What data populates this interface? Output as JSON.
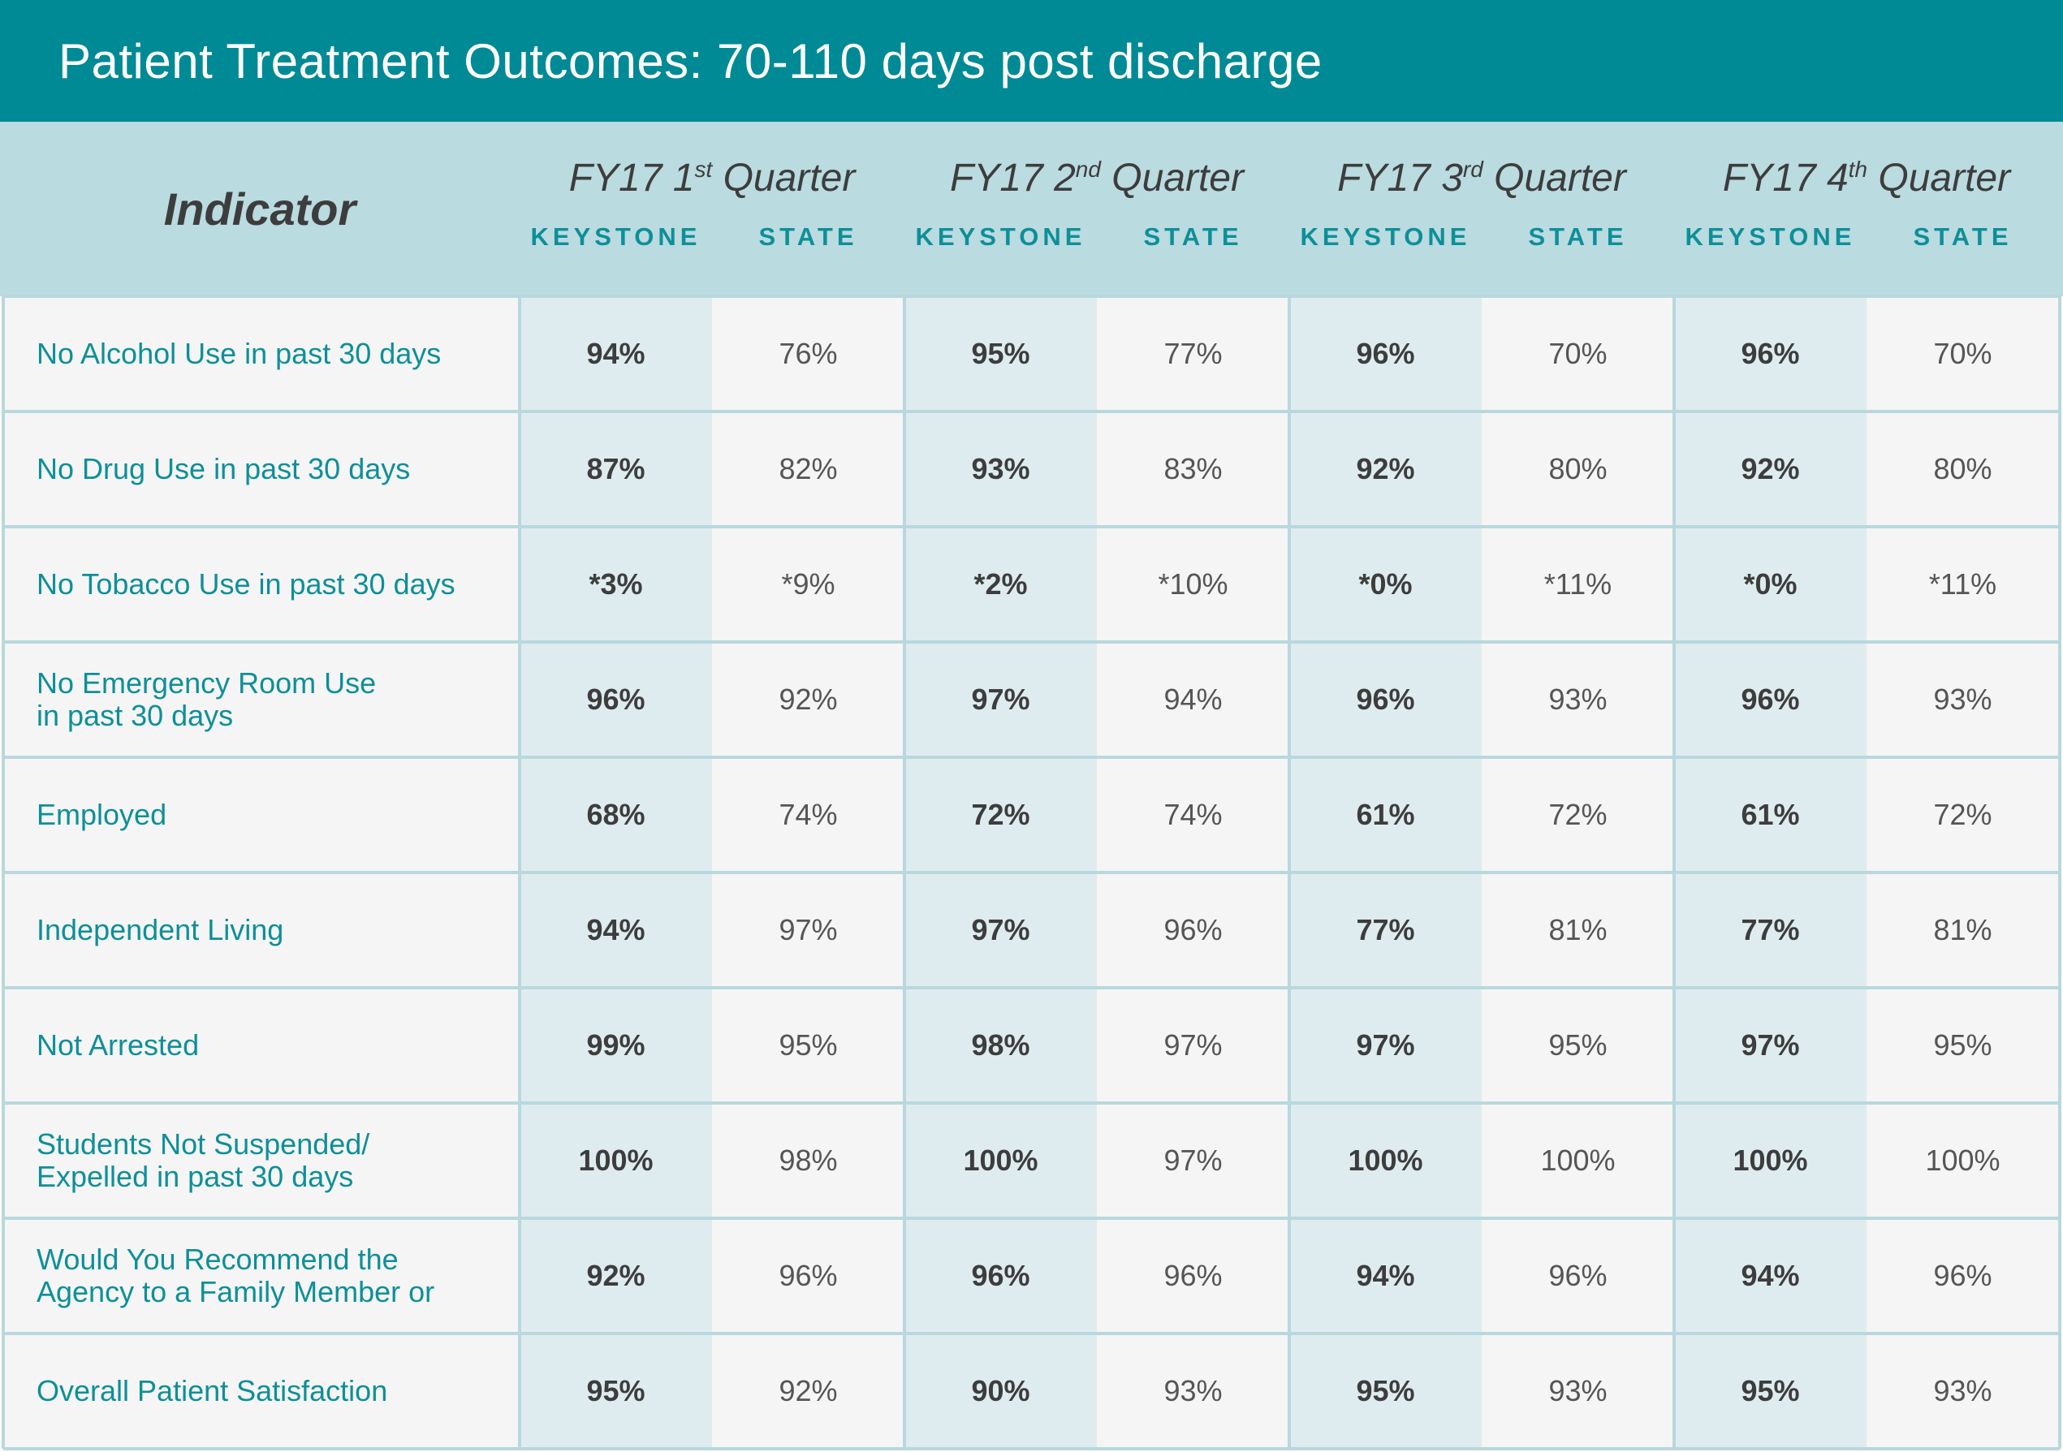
{
  "title": "Patient Treatment Outcomes: 70-110 days post discharge",
  "chart_data": {
    "type": "table",
    "indicator_header": "Indicator",
    "quarters": [
      {
        "prefix": "FY17 1",
        "ordinal": "st",
        "suffix": " Quarter"
      },
      {
        "prefix": "FY17 2",
        "ordinal": "nd",
        "suffix": " Quarter"
      },
      {
        "prefix": "FY17 3",
        "ordinal": "rd",
        "suffix": " Quarter"
      },
      {
        "prefix": "FY17 4",
        "ordinal": "th",
        "suffix": " Quarter"
      }
    ],
    "subheaders": [
      "KEYSTONE",
      "STATE"
    ],
    "rows": [
      {
        "label": "No Alcohol Use in past 30 days",
        "values": [
          "94%",
          "76%",
          "95%",
          "77%",
          "96%",
          "70%",
          "96%",
          "70%"
        ]
      },
      {
        "label": "No Drug Use in past 30 days",
        "values": [
          "87%",
          "82%",
          "93%",
          "83%",
          "92%",
          "80%",
          "92%",
          "80%"
        ]
      },
      {
        "label": "No Tobacco Use in past 30 days",
        "values": [
          "*3%",
          "*9%",
          "*2%",
          "*10%",
          "*0%",
          "*11%",
          "*0%",
          "*11%"
        ]
      },
      {
        "label": "No Emergency Room Use\nin past 30 days",
        "values": [
          "96%",
          "92%",
          "97%",
          "94%",
          "96%",
          "93%",
          "96%",
          "93%"
        ]
      },
      {
        "label": "Employed",
        "values": [
          "68%",
          "74%",
          "72%",
          "74%",
          "61%",
          "72%",
          "61%",
          "72%"
        ]
      },
      {
        "label": "Independent Living",
        "values": [
          "94%",
          "97%",
          "97%",
          "96%",
          "77%",
          "81%",
          "77%",
          "81%"
        ]
      },
      {
        "label": "Not Arrested",
        "values": [
          "99%",
          "95%",
          "98%",
          "97%",
          "97%",
          "95%",
          "97%",
          "95%"
        ]
      },
      {
        "label": "Students Not Suspended/\nExpelled in past 30 days",
        "values": [
          "100%",
          "98%",
          "100%",
          "97%",
          "100%",
          "100%",
          "100%",
          "100%"
        ]
      },
      {
        "label": "Would You Recommend the\nAgency to a Family Member or",
        "values": [
          "92%",
          "96%",
          "96%",
          "96%",
          "94%",
          "96%",
          "94%",
          "96%"
        ]
      },
      {
        "label": "Overall Patient Satisfaction",
        "values": [
          "95%",
          "92%",
          "90%",
          "93%",
          "95%",
          "93%",
          "95%",
          "93%"
        ]
      }
    ]
  },
  "colors": {
    "title_bar": "#008a95",
    "header_band": "#badbe0",
    "keystone_column": "#dfecef",
    "state_column": "#f5f5f5",
    "grid_line": "#b8d8dd",
    "label_text": "#0e8f98"
  }
}
